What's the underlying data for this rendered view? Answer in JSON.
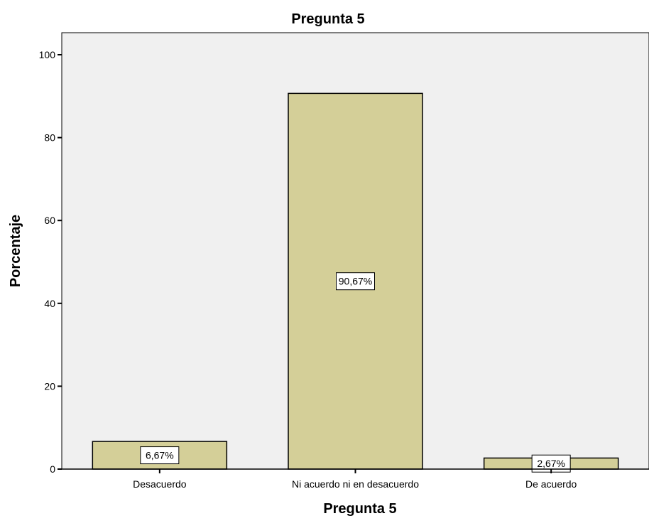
{
  "chart_data": {
    "type": "bar",
    "title": "Pregunta 5",
    "xlabel": "Pregunta 5",
    "ylabel": "Porcentaje",
    "categories": [
      "Desacuerdo",
      "Ni acuerdo ni en desacuerdo",
      "De acuerdo"
    ],
    "values": [
      6.67,
      90.67,
      2.67
    ],
    "data_labels": [
      "6,67%",
      "90,67%",
      "2,67%"
    ],
    "ylim": [
      0,
      105
    ],
    "yticks": [
      0,
      20,
      40,
      60,
      80,
      100
    ],
    "grid": false,
    "legend": "none",
    "colors": {
      "bar_fill": "#d4cf98",
      "bar_stroke": "#000000",
      "plot_background": "#f0f0f0",
      "label_box_fill": "#ffffff"
    }
  }
}
